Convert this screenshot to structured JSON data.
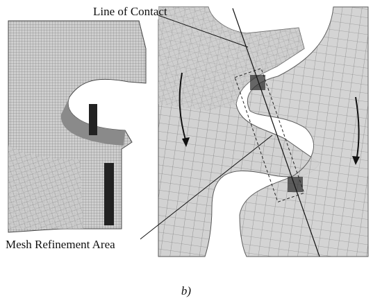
{
  "labels": {
    "line_of_contact": "Line of Contact",
    "mesh_refinement": "Mesh Refinement Area"
  },
  "caption": "b)"
}
